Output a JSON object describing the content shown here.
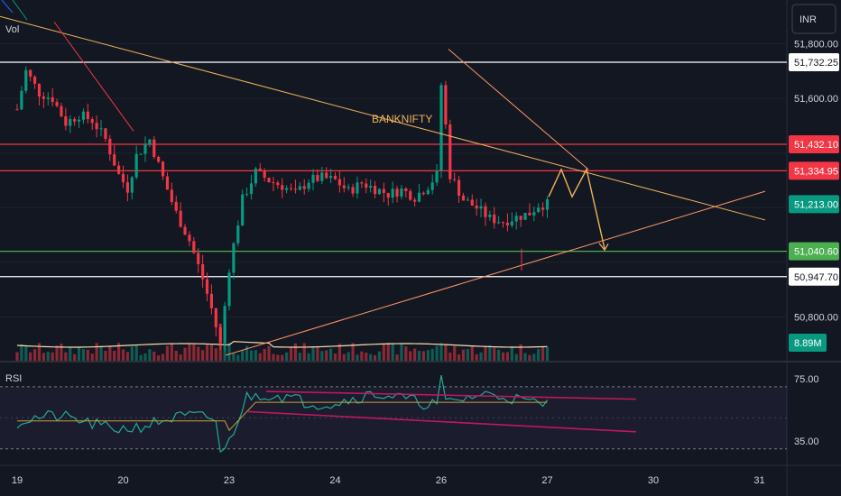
{
  "currency": "INR",
  "chart_data": {
    "type": "candlestick",
    "title": "",
    "annotation": "BANKNIFTY",
    "price_axis": {
      "range": [
        50640,
        51960
      ],
      "ticks": [
        {
          "label": "51,800.00",
          "value": 51800
        },
        {
          "label": "51,600.00",
          "value": 51600
        },
        {
          "label": "50,800.00",
          "value": 50800
        }
      ]
    },
    "x_axis": {
      "ticks": [
        {
          "label": "19",
          "index": 0
        },
        {
          "label": "20",
          "index": 24
        },
        {
          "label": "23",
          "index": 48
        },
        {
          "label": "24",
          "index": 72
        },
        {
          "label": "26",
          "index": 96
        },
        {
          "label": "27",
          "index": 120
        },
        {
          "label": "30",
          "index": 144
        },
        {
          "label": "31",
          "index": 168
        }
      ]
    },
    "horizontal_levels": [
      {
        "label": "51,732.25",
        "value": 51732.25,
        "color": "#ffffff",
        "tag_bg": "#ffffff",
        "tag_fg": "#131722"
      },
      {
        "label": "51,432.10",
        "value": 51432.1,
        "color": "#f23645",
        "tag_bg": "#f23645",
        "tag_fg": "#ffffff"
      },
      {
        "label": "51,334.95",
        "value": 51334.95,
        "color": "#f23645",
        "tag_bg": "#f23645",
        "tag_fg": "#ffffff"
      },
      {
        "label": "51,040.60",
        "value": 51040.6,
        "color": "#4caf50",
        "tag_bg": "#4caf50",
        "tag_fg": "#ffffff"
      },
      {
        "label": "50,947.70",
        "value": 50947.7,
        "color": "#ffffff",
        "tag_bg": "#ffffff",
        "tag_fg": "#131722"
      }
    ],
    "last_price": {
      "label": "51,213.00",
      "value": 51213,
      "tag_bg": "#089981"
    },
    "volume": {
      "label": "Vol",
      "last_label": "8.89M",
      "tag_bg": "#089981"
    },
    "colors": {
      "up": "#089981",
      "down": "#f23645",
      "trendline": "#f0b35a",
      "rsi_line": "#22ab94",
      "rsi_ma": "#c9a13b",
      "rsi_channel": "#c2185b"
    },
    "rsi": {
      "label": "RSI",
      "range": [
        20,
        85
      ],
      "ticks": [
        {
          "label": "75.00",
          "value": 75
        },
        {
          "label": "35.00",
          "value": 35
        }
      ],
      "overbought": 70,
      "oversold": 30
    }
  }
}
